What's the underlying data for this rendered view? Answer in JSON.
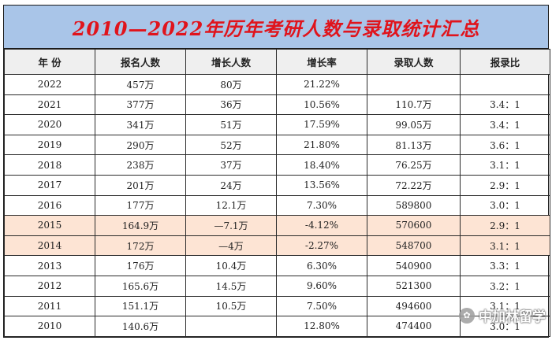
{
  "title": "2010—2022年历年考研人数与录取统计汇总",
  "headers": [
    "年  份",
    "报名人数",
    "增长人数",
    "增长率",
    "录取人数",
    "报录比"
  ],
  "rows": [
    [
      "2022",
      "457万",
      "80万",
      "21.22%",
      "",
      ""
    ],
    [
      "2021",
      "377万",
      "36万",
      "10.56%",
      "110.7万",
      "3.4：1"
    ],
    [
      "2020",
      "341万",
      "51万",
      "17.59%",
      "99.05万",
      "3.4：1"
    ],
    [
      "2019",
      "290万",
      "52万",
      "21.80%",
      "81.13万",
      "3.6：1"
    ],
    [
      "2018",
      "238万",
      "37万",
      "18.40%",
      "76.25万",
      "3.1：1"
    ],
    [
      "2017",
      "201万",
      "24万",
      "13.56%",
      "72.22万",
      "2.9：1"
    ],
    [
      "2016",
      "177万",
      "12.1万",
      "7.30%",
      "589800",
      "3.0：1"
    ],
    [
      "2015",
      "164.9万",
      "—7.1万",
      "-4.12%",
      "570600",
      "2.9：1"
    ],
    [
      "2014",
      "172万",
      "—4万",
      "-2.27%",
      "548700",
      "3.1：1"
    ],
    [
      "2013",
      "176万",
      "10.4万",
      "6.30%",
      "540900",
      "3.3：1"
    ],
    [
      "2012",
      "165.6万",
      "14.5万",
      "9.60%",
      "521300",
      "3.2：1"
    ],
    [
      "2011",
      "151.1万",
      "10.5万",
      "7.50%",
      "494600",
      "3.1：1"
    ],
    [
      "2010",
      "140.6万",
      "",
      "12.80%",
      "474400",
      "3.0：1"
    ]
  ],
  "highlighted_years": [
    "2015",
    "2014"
  ],
  "colors": {
    "title_bg": "#a9c5e8",
    "title_text": "#e0141c",
    "highlight_bg": "#fde4d4",
    "header_bg": "#efefef"
  },
  "watermark": {
    "text": "中加林留学",
    "icon": "wechat-channel-icon"
  }
}
